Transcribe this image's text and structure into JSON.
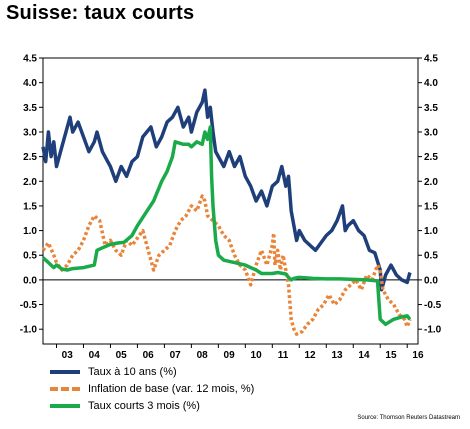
{
  "title": "Suisse: taux courts",
  "source": "Source: Thomson Reuters Datastream",
  "chart_data": {
    "type": "line",
    "ylim": [
      -1.3,
      4.5
    ],
    "yticks": [
      -1.0,
      -0.5,
      0.0,
      0.5,
      1.0,
      1.5,
      2.0,
      2.5,
      3.0,
      3.5,
      4.0,
      4.5
    ],
    "ytick_labels": [
      "-1.0",
      "-0.5",
      "0.0",
      "0.5",
      "1.0",
      "1.5",
      "2.0",
      "2.5",
      "3.0",
      "3.5",
      "4.0",
      "4.5"
    ],
    "xlim": [
      2002.5,
      2016.4
    ],
    "x_ticks": [
      2003,
      2004,
      2005,
      2006,
      2007,
      2008,
      2009,
      2010,
      2011,
      2012,
      2013,
      2014,
      2015,
      2016
    ],
    "x_tick_labels": [
      "03",
      "04",
      "05",
      "06",
      "07",
      "08",
      "09",
      "10",
      "11",
      "12",
      "13",
      "14",
      "15",
      "16"
    ],
    "grid": false,
    "legend_position": "bottom-left",
    "series": [
      {
        "name": "Taux à 10 ans (%)",
        "color": "#1f3f7a",
        "style": "solid",
        "points": [
          [
            2002.5,
            2.7
          ],
          [
            2002.6,
            2.4
          ],
          [
            2002.7,
            3.0
          ],
          [
            2002.8,
            2.5
          ],
          [
            2002.9,
            2.8
          ],
          [
            2003.0,
            2.3
          ],
          [
            2003.1,
            2.5
          ],
          [
            2003.3,
            2.9
          ],
          [
            2003.5,
            3.3
          ],
          [
            2003.6,
            3.0
          ],
          [
            2003.8,
            3.2
          ],
          [
            2004.0,
            2.9
          ],
          [
            2004.2,
            2.6
          ],
          [
            2004.4,
            2.8
          ],
          [
            2004.5,
            3.0
          ],
          [
            2004.7,
            2.6
          ],
          [
            2004.9,
            2.4
          ],
          [
            2005.0,
            2.3
          ],
          [
            2005.2,
            2.0
          ],
          [
            2005.4,
            2.3
          ],
          [
            2005.6,
            2.1
          ],
          [
            2005.8,
            2.4
          ],
          [
            2006.0,
            2.5
          ],
          [
            2006.2,
            2.9
          ],
          [
            2006.5,
            3.1
          ],
          [
            2006.7,
            2.7
          ],
          [
            2006.9,
            2.9
          ],
          [
            2007.1,
            3.2
          ],
          [
            2007.3,
            3.3
          ],
          [
            2007.5,
            3.5
          ],
          [
            2007.7,
            3.1
          ],
          [
            2007.9,
            3.3
          ],
          [
            2008.0,
            3.0
          ],
          [
            2008.2,
            3.4
          ],
          [
            2008.4,
            3.6
          ],
          [
            2008.5,
            3.85
          ],
          [
            2008.6,
            3.3
          ],
          [
            2008.7,
            3.5
          ],
          [
            2008.8,
            3.0
          ],
          [
            2008.9,
            2.6
          ],
          [
            2009.0,
            2.5
          ],
          [
            2009.2,
            2.3
          ],
          [
            2009.4,
            2.6
          ],
          [
            2009.6,
            2.3
          ],
          [
            2009.8,
            2.5
          ],
          [
            2010.0,
            2.1
          ],
          [
            2010.2,
            1.9
          ],
          [
            2010.4,
            1.6
          ],
          [
            2010.6,
            1.8
          ],
          [
            2010.8,
            1.5
          ],
          [
            2011.0,
            1.9
          ],
          [
            2011.2,
            2.0
          ],
          [
            2011.35,
            2.3
          ],
          [
            2011.5,
            1.9
          ],
          [
            2011.6,
            2.1
          ],
          [
            2011.7,
            1.4
          ],
          [
            2011.8,
            1.1
          ],
          [
            2011.9,
            0.8
          ],
          [
            2012.0,
            1.0
          ],
          [
            2012.2,
            0.8
          ],
          [
            2012.4,
            0.7
          ],
          [
            2012.6,
            0.6
          ],
          [
            2012.8,
            0.75
          ],
          [
            2013.0,
            0.9
          ],
          [
            2013.2,
            1.0
          ],
          [
            2013.4,
            1.2
          ],
          [
            2013.6,
            1.5
          ],
          [
            2013.7,
            1.0
          ],
          [
            2013.8,
            1.1
          ],
          [
            2014.0,
            1.2
          ],
          [
            2014.2,
            1.0
          ],
          [
            2014.4,
            0.9
          ],
          [
            2014.6,
            0.6
          ],
          [
            2014.8,
            0.55
          ],
          [
            2015.0,
            0.2
          ],
          [
            2015.05,
            -0.2
          ],
          [
            2015.2,
            0.1
          ],
          [
            2015.4,
            0.3
          ],
          [
            2015.6,
            0.1
          ],
          [
            2015.8,
            0.0
          ],
          [
            2016.0,
            -0.05
          ],
          [
            2016.1,
            0.15
          ]
        ]
      },
      {
        "name": "Inflation de base (var. 12 mois, %)",
        "color": "#e8853a",
        "style": "dashed",
        "points": [
          [
            2002.5,
            0.6
          ],
          [
            2002.7,
            0.75
          ],
          [
            2002.9,
            0.5
          ],
          [
            2003.0,
            0.35
          ],
          [
            2003.2,
            0.2
          ],
          [
            2003.4,
            0.3
          ],
          [
            2003.6,
            0.5
          ],
          [
            2003.8,
            0.6
          ],
          [
            2004.0,
            0.8
          ],
          [
            2004.2,
            1.1
          ],
          [
            2004.4,
            1.3
          ],
          [
            2004.6,
            1.2
          ],
          [
            2004.8,
            0.7
          ],
          [
            2005.0,
            0.8
          ],
          [
            2005.2,
            0.6
          ],
          [
            2005.4,
            0.5
          ],
          [
            2005.6,
            0.8
          ],
          [
            2005.8,
            0.7
          ],
          [
            2006.0,
            0.85
          ],
          [
            2006.2,
            1.0
          ],
          [
            2006.4,
            0.6
          ],
          [
            2006.6,
            0.2
          ],
          [
            2006.8,
            0.5
          ],
          [
            2007.0,
            0.6
          ],
          [
            2007.2,
            0.7
          ],
          [
            2007.4,
            1.0
          ],
          [
            2007.6,
            1.2
          ],
          [
            2007.8,
            1.3
          ],
          [
            2008.0,
            1.5
          ],
          [
            2008.2,
            1.4
          ],
          [
            2008.4,
            1.7
          ],
          [
            2008.5,
            1.6
          ],
          [
            2008.6,
            1.3
          ],
          [
            2008.8,
            1.2
          ],
          [
            2009.0,
            1.1
          ],
          [
            2009.2,
            0.9
          ],
          [
            2009.4,
            0.8
          ],
          [
            2009.6,
            0.5
          ],
          [
            2009.8,
            0.3
          ],
          [
            2010.0,
            0.2
          ],
          [
            2010.2,
            -0.1
          ],
          [
            2010.4,
            0.3
          ],
          [
            2010.6,
            0.6
          ],
          [
            2010.8,
            0.3
          ],
          [
            2011.0,
            0.7
          ],
          [
            2011.05,
            0.95
          ],
          [
            2011.1,
            0.3
          ],
          [
            2011.2,
            0.6
          ],
          [
            2011.3,
            0.2
          ],
          [
            2011.4,
            0.5
          ],
          [
            2011.5,
            0.2
          ],
          [
            2011.6,
            -0.1
          ],
          [
            2011.7,
            -0.8
          ],
          [
            2011.8,
            -1.0
          ],
          [
            2011.9,
            -1.1
          ],
          [
            2012.1,
            -1.05
          ],
          [
            2012.3,
            -0.9
          ],
          [
            2012.5,
            -0.8
          ],
          [
            2012.7,
            -0.6
          ],
          [
            2012.9,
            -0.5
          ],
          [
            2013.1,
            -0.3
          ],
          [
            2013.3,
            -0.5
          ],
          [
            2013.5,
            -0.4
          ],
          [
            2013.7,
            -0.2
          ],
          [
            2013.9,
            -0.1
          ],
          [
            2014.1,
            0.0
          ],
          [
            2014.3,
            -0.2
          ],
          [
            2014.5,
            0.1
          ],
          [
            2014.7,
            0.0
          ],
          [
            2014.9,
            0.3
          ],
          [
            2015.0,
            0.2
          ],
          [
            2015.1,
            -0.2
          ],
          [
            2015.3,
            -0.4
          ],
          [
            2015.5,
            -0.5
          ],
          [
            2015.7,
            -0.7
          ],
          [
            2015.9,
            -0.8
          ],
          [
            2016.0,
            -0.95
          ],
          [
            2016.1,
            -0.8
          ]
        ]
      },
      {
        "name": "Taux courts 3 mois (%)",
        "color": "#1aaa4a",
        "style": "solid",
        "points": [
          [
            2002.5,
            0.45
          ],
          [
            2002.7,
            0.35
          ],
          [
            2002.9,
            0.25
          ],
          [
            2003.0,
            0.3
          ],
          [
            2003.2,
            0.22
          ],
          [
            2003.4,
            0.2
          ],
          [
            2003.6,
            0.23
          ],
          [
            2003.8,
            0.24
          ],
          [
            2004.0,
            0.25
          ],
          [
            2004.4,
            0.3
          ],
          [
            2004.5,
            0.6
          ],
          [
            2004.7,
            0.65
          ],
          [
            2005.0,
            0.72
          ],
          [
            2005.3,
            0.75
          ],
          [
            2005.5,
            0.76
          ],
          [
            2005.8,
            0.9
          ],
          [
            2006.0,
            1.1
          ],
          [
            2006.3,
            1.35
          ],
          [
            2006.6,
            1.6
          ],
          [
            2006.9,
            2.0
          ],
          [
            2007.1,
            2.2
          ],
          [
            2007.3,
            2.5
          ],
          [
            2007.4,
            2.8
          ],
          [
            2007.7,
            2.75
          ],
          [
            2007.9,
            2.75
          ],
          [
            2008.0,
            2.7
          ],
          [
            2008.2,
            2.8
          ],
          [
            2008.4,
            2.75
          ],
          [
            2008.5,
            3.0
          ],
          [
            2008.6,
            2.85
          ],
          [
            2008.7,
            3.1
          ],
          [
            2008.75,
            2.1
          ],
          [
            2008.8,
            1.5
          ],
          [
            2008.9,
            0.8
          ],
          [
            2009.0,
            0.5
          ],
          [
            2009.2,
            0.4
          ],
          [
            2009.6,
            0.35
          ],
          [
            2010.0,
            0.3
          ],
          [
            2010.2,
            0.25
          ],
          [
            2010.4,
            0.2
          ],
          [
            2010.6,
            0.13
          ],
          [
            2011.0,
            0.13
          ],
          [
            2011.2,
            0.15
          ],
          [
            2011.5,
            0.12
          ],
          [
            2011.6,
            0.05
          ],
          [
            2011.7,
            0.0
          ],
          [
            2011.8,
            0.03
          ],
          [
            2012.0,
            0.05
          ],
          [
            2012.5,
            0.03
          ],
          [
            2013.0,
            0.02
          ],
          [
            2013.5,
            0.02
          ],
          [
            2014.0,
            0.01
          ],
          [
            2014.5,
            0.0
          ],
          [
            2014.9,
            -0.02
          ],
          [
            2015.0,
            -0.8
          ],
          [
            2015.2,
            -0.9
          ],
          [
            2015.5,
            -0.8
          ],
          [
            2015.8,
            -0.75
          ],
          [
            2016.0,
            -0.73
          ],
          [
            2016.1,
            -0.8
          ]
        ]
      }
    ]
  }
}
